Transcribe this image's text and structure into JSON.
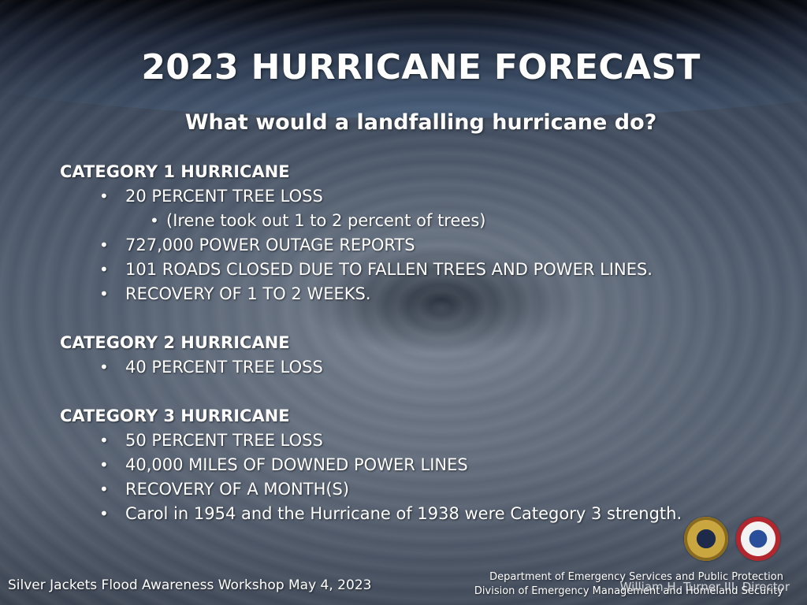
{
  "slide": {
    "title": "2023 HURRICANE FORECAST",
    "subtitle": "What would a landfalling hurricane do?"
  },
  "categories": [
    {
      "heading": "CATEGORY 1 HURRICANE",
      "items": [
        {
          "text": "20 PERCENT TREE LOSS",
          "level": 1
        },
        {
          "text": "(Irene took out 1 to 2 percent of trees)",
          "level": 2
        },
        {
          "text": "727,000 POWER OUTAGE REPORTS",
          "level": 1
        },
        {
          "text": "101 ROADS CLOSED DUE TO FALLEN TREES AND POWER LINES.",
          "level": 1
        },
        {
          "text": "RECOVERY OF 1 TO 2 WEEKS.",
          "level": 1
        }
      ]
    },
    {
      "heading": "CATEGORY 2 HURRICANE",
      "items": [
        {
          "text": "40 PERCENT TREE LOSS",
          "level": 1
        }
      ]
    },
    {
      "heading": "CATEGORY 3 HURRICANE",
      "items": [
        {
          "text": "50 PERCENT TREE LOSS",
          "level": 1
        },
        {
          "text": "40,000 MILES OF DOWNED POWER LINES",
          "level": 1
        },
        {
          "text": "RECOVERY OF A MONTH(S)",
          "level": 1
        },
        {
          "text": "Carol in 1954 and the Hurricane of 1938 were Category 3 strength.",
          "level": 1
        }
      ]
    }
  ],
  "footer": {
    "event": "Silver Jackets Flood Awareness Workshop May 4, 2023",
    "department_line1": "Department of Emergency Services and Public Protection",
    "department_line2": "Division of Emergency Management and Homeland Security",
    "director": "William H. Turner III, Director"
  },
  "icons": {
    "left_seal": "gold-seal-icon",
    "right_seal": "red-seal-icon"
  }
}
